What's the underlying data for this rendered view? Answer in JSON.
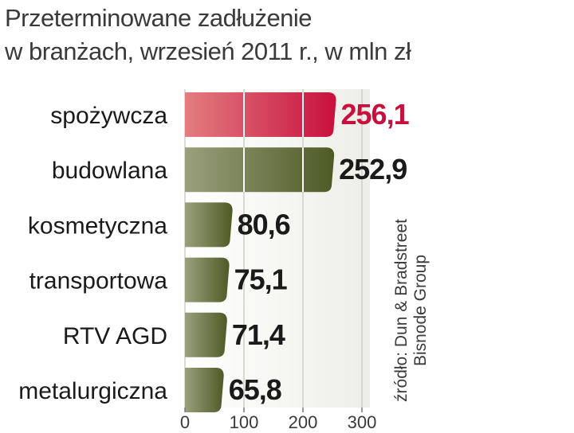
{
  "chart_data": {
    "type": "bar",
    "orientation": "horizontal",
    "title": "Przeterminowane zadłużenie",
    "subtitle": "w branżach, wrzesień 2011 r., w mln zł",
    "categories": [
      "spożywcza",
      "budowlana",
      "kosmetyczna",
      "transportowa",
      "RTV AGD",
      "metalurgiczna"
    ],
    "values": [
      256.1,
      252.9,
      80.6,
      75.1,
      71.4,
      65.8
    ],
    "value_labels": [
      "256,1",
      "252,9",
      "80,6",
      "75,1",
      "71,4",
      "65,8"
    ],
    "xlim": [
      0,
      300
    ],
    "x_ticks": [
      0,
      100,
      200,
      300
    ],
    "tick_labels": [
      "0",
      "100",
      "200",
      "300"
    ],
    "grid": true,
    "highlight_index": 0,
    "source_lines": [
      "źródło: Dun & Bradstreet",
      "Bisnode Group"
    ],
    "colors": {
      "highlight_start": "#e37d7f",
      "highlight_end": "#c8103e",
      "bar_start": "#9aa07c",
      "bar_end": "#4e5a26",
      "highlight_text": "#c8103e",
      "text": "#1a1a1a",
      "panel": "#eeeee8"
    }
  }
}
